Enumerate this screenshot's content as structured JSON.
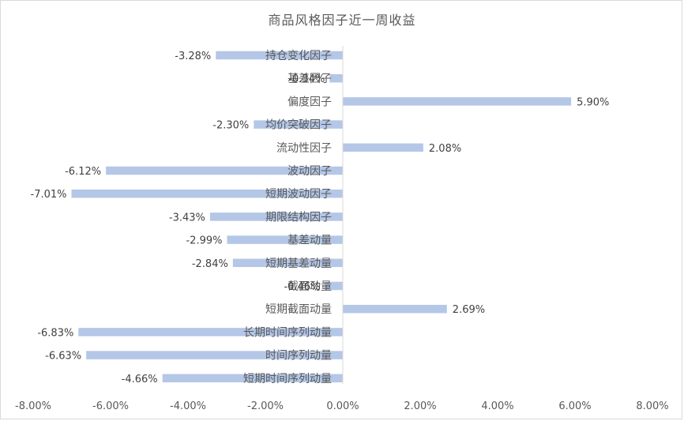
{
  "chart_data": {
    "type": "bar",
    "orientation": "horizontal",
    "title": "商品风格因子近一周收益",
    "xlabel": "",
    "ylabel": "",
    "xlim": [
      -0.08,
      0.08
    ],
    "x_ticks": [
      "-8.00%",
      "-6.00%",
      "-4.00%",
      "-2.00%",
      "0.00%",
      "2.00%",
      "4.00%",
      "6.00%",
      "8.00%"
    ],
    "x_tick_values": [
      -0.08,
      -0.06,
      -0.04,
      -0.02,
      0.0,
      0.02,
      0.04,
      0.06,
      0.08
    ],
    "grid": false,
    "legend": "none",
    "bar_color": "#b4c7e7",
    "categories": [
      "持仓变化因子",
      "基差因子",
      "偏度因子",
      "均价突破因子",
      "流动性因子",
      "波动因子",
      "短期波动因子",
      "期限结构因子",
      "基差动量",
      "短期基差动量",
      "截面动量",
      "短期截面动量",
      "长期时间序列动量",
      "时间序列动量",
      "短期时间序列动量"
    ],
    "values": [
      -0.0328,
      -0.0034,
      0.059,
      -0.023,
      0.0208,
      -0.0612,
      -0.0701,
      -0.0343,
      -0.0299,
      -0.0284,
      -0.0046,
      0.0269,
      -0.0683,
      -0.0663,
      -0.0466
    ],
    "data_labels": [
      "-3.28%",
      "-0.34%",
      "5.90%",
      "-2.30%",
      "2.08%",
      "-6.12%",
      "-7.01%",
      "-3.43%",
      "-2.99%",
      "-2.84%",
      "-0.46%",
      "2.69%",
      "-6.83%",
      "-6.63%",
      "-4.66%"
    ]
  }
}
